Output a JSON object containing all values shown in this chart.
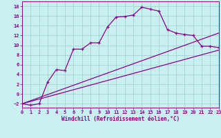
{
  "xlabel": "Windchill (Refroidissement éolien,°C)",
  "bg_color": "#c8f0f0",
  "grid_color": "#a0cccc",
  "line_color": "#880088",
  "xlim": [
    0,
    23
  ],
  "ylim": [
    -2.8,
    19.0
  ],
  "yticks": [
    -2,
    0,
    2,
    4,
    6,
    8,
    10,
    12,
    14,
    16,
    18
  ],
  "xticks": [
    0,
    1,
    2,
    3,
    4,
    5,
    6,
    7,
    8,
    9,
    10,
    11,
    12,
    13,
    14,
    15,
    16,
    17,
    18,
    19,
    20,
    21,
    22,
    23
  ],
  "main_x": [
    0,
    1,
    2,
    3,
    4,
    5,
    6,
    7,
    8,
    9,
    10,
    11,
    12,
    13,
    14,
    15,
    16,
    17,
    18,
    19,
    20,
    21,
    22,
    23
  ],
  "main_y": [
    -2,
    -2.3,
    -2,
    2.5,
    5.0,
    4.8,
    9.2,
    9.2,
    10.5,
    10.5,
    13.8,
    15.8,
    15.9,
    16.2,
    17.8,
    17.4,
    17.0,
    13.2,
    12.5,
    12.2,
    12.0,
    9.8,
    9.8,
    9.5
  ],
  "line2_x": [
    0,
    23
  ],
  "line2_y": [
    -2.0,
    9.0
  ],
  "line3_x": [
    0,
    23
  ],
  "line3_y": [
    -2.0,
    12.5
  ]
}
